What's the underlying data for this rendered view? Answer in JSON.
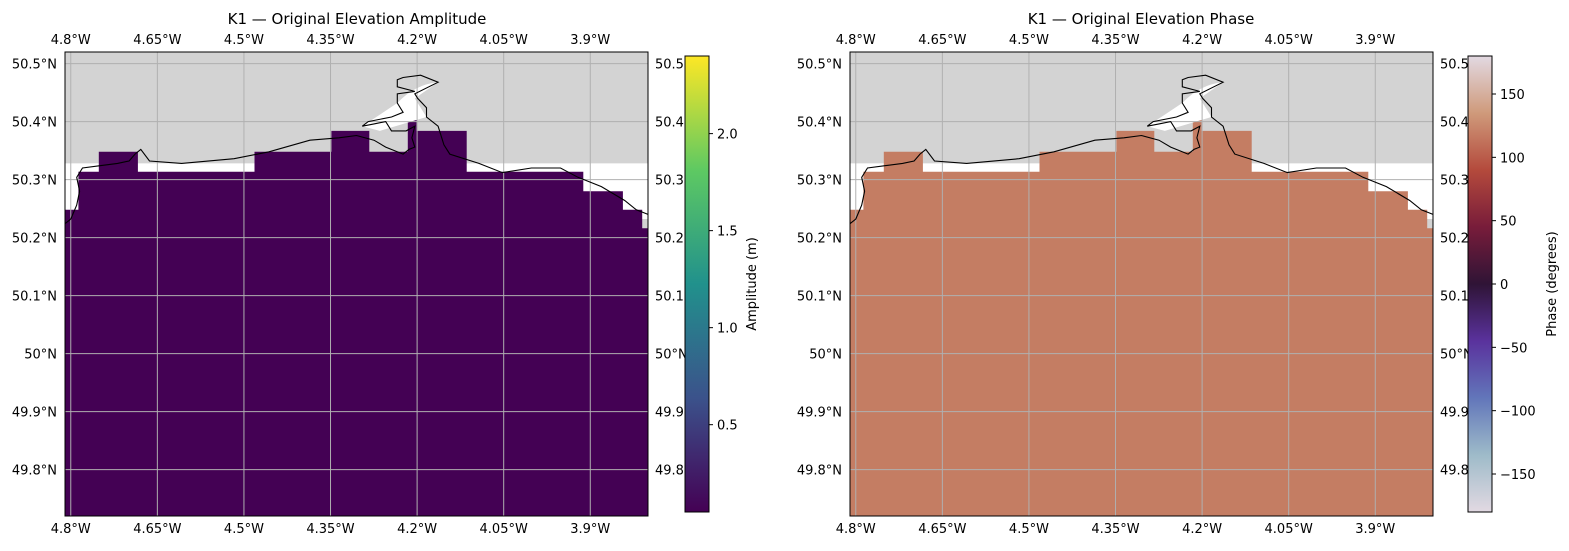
{
  "panels": [
    {
      "title": "K1 — Original Elevation Amplitude",
      "fill_color": "#440154",
      "colorbar": {
        "label": "Amplitude (m)",
        "ticks": [
          "0.5",
          "1.0",
          "1.5",
          "2.0"
        ],
        "tick_values": [
          0.5,
          1.0,
          1.5,
          2.0
        ],
        "range": [
          0.05,
          2.4
        ],
        "colormap": "viridis",
        "colors": [
          "#440154",
          "#3b528b",
          "#21918c",
          "#5ec962",
          "#fde725"
        ]
      }
    },
    {
      "title": "K1 — Original Elevation Phase",
      "fill_color": "#c47d63",
      "colorbar": {
        "label": "Phase (degrees)",
        "ticks": [
          "−150",
          "−100",
          "−50",
          "0",
          "50",
          "100",
          "150"
        ],
        "tick_values": [
          -150,
          -100,
          -50,
          0,
          50,
          100,
          150
        ],
        "range": [
          -180,
          180
        ],
        "colormap": "twilight",
        "colors": [
          "#e2d9e2",
          "#9ebbc9",
          "#6276ba",
          "#5a329d",
          "#2f1436",
          "#781c3a",
          "#b44a3c",
          "#cf9a7b",
          "#e2d9e2"
        ]
      }
    }
  ],
  "axes": {
    "lon_range": [
      -4.81,
      -3.8
    ],
    "lat_range": [
      49.72,
      50.52
    ],
    "lon_tick_values": [
      -4.8,
      -4.65,
      -4.5,
      -4.35,
      -4.2,
      -4.05,
      -3.9
    ],
    "lon_tick_labels": [
      "4.8°W",
      "4.65°W",
      "4.5°W",
      "4.35°W",
      "4.2°W",
      "4.05°W",
      "3.9°W"
    ],
    "lat_tick_values": [
      49.8,
      49.9,
      50.0,
      50.1,
      50.2,
      50.3,
      50.4,
      50.5
    ],
    "lat_tick_labels_left": [
      "49.8°N",
      "49.9°N",
      "50°N",
      "50.1°N",
      "50.2°N",
      "50.3°N",
      "50.4°N",
      "50.5°N"
    ],
    "lat_tick_labels_right": [
      "49.8",
      "49.9",
      "50°N",
      "50.1",
      "50.2",
      "50.3",
      "50.4",
      "50.5"
    ],
    "land_color": "#d3d3d3",
    "grid_color": "#b0b0b0"
  }
}
